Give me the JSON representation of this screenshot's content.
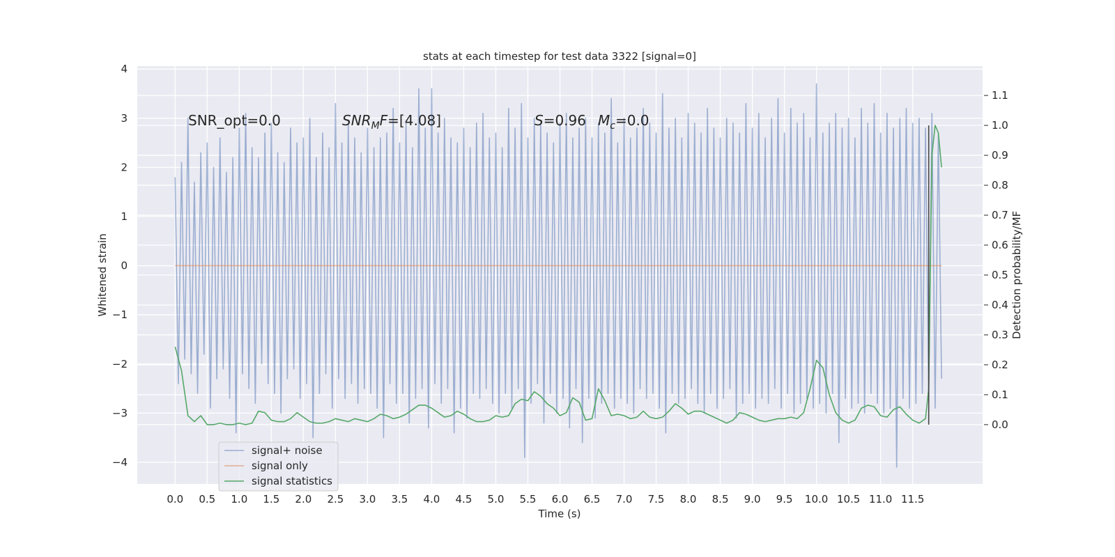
{
  "chart_data": {
    "type": "line",
    "title": "stats at each timestep for test data 3322 [signal=0]",
    "xlabel": "Time (s)",
    "ylabel": "Whitened strain",
    "y2label": "Detection probability/MF",
    "xlim": [
      -0.59,
      12.59
    ],
    "ylim": [
      -4.44,
      4.06
    ],
    "y2lim": [
      -0.198,
      1.198
    ],
    "grid": true,
    "legend": "lower left",
    "xticks": [
      {
        "value": 0,
        "label": "0.0"
      },
      {
        "value": 0.5,
        "label": "0.5"
      },
      {
        "value": 1,
        "label": "1.0"
      },
      {
        "value": 1.5,
        "label": "1.5"
      },
      {
        "value": 2,
        "label": "2.0"
      },
      {
        "value": 2.5,
        "label": "2.5"
      },
      {
        "value": 3,
        "label": "3.0"
      },
      {
        "value": 3.5,
        "label": "3.5"
      },
      {
        "value": 4,
        "label": "4.0"
      },
      {
        "value": 4.5,
        "label": "4.5"
      },
      {
        "value": 5,
        "label": "5.0"
      },
      {
        "value": 5.5,
        "label": "5.5"
      },
      {
        "value": 6,
        "label": "6.0"
      },
      {
        "value": 6.5,
        "label": "6.5"
      },
      {
        "value": 7,
        "label": "7.0"
      },
      {
        "value": 7.5,
        "label": "7.5"
      },
      {
        "value": 8,
        "label": "8.0"
      },
      {
        "value": 8.5,
        "label": "8.5"
      },
      {
        "value": 9,
        "label": "9.0"
      },
      {
        "value": 9.5,
        "label": "9.5"
      },
      {
        "value": 10,
        "label": "10.0"
      },
      {
        "value": 10.5,
        "label": "10.5"
      },
      {
        "value": 11,
        "label": "11.0"
      },
      {
        "value": 11.5,
        "label": "11.5"
      }
    ],
    "yticks": [
      {
        "value": -4,
        "label": "−4"
      },
      {
        "value": -3,
        "label": "−3"
      },
      {
        "value": -2,
        "label": "−2"
      },
      {
        "value": -1,
        "label": "−1"
      },
      0,
      1,
      2,
      3,
      4
    ],
    "y2ticks": [
      {
        "value": 0,
        "label": "0.0"
      },
      {
        "value": 0.1,
        "label": "0.1"
      },
      {
        "value": 0.2,
        "label": "0.2"
      },
      {
        "value": 0.3,
        "label": "0.3"
      },
      {
        "value": 0.4,
        "label": "0.4"
      },
      {
        "value": 0.5,
        "label": "0.5"
      },
      {
        "value": 0.6,
        "label": "0.6"
      },
      {
        "value": 0.7,
        "label": "0.7"
      },
      {
        "value": 0.8,
        "label": "0.8"
      },
      {
        "value": 0.9,
        "label": "0.9"
      },
      {
        "value": 1,
        "label": "1.0"
      },
      {
        "value": 1.1,
        "label": "1.1"
      }
    ],
    "series": [
      {
        "name": "signal+ noise",
        "color": "#4c72b0",
        "opacity": 0.5,
        "x": [
          0,
          0.05,
          0.1,
          0.15,
          0.2,
          0.25,
          0.3,
          0.35,
          0.4,
          0.45,
          0.5,
          0.55,
          0.6,
          0.65,
          0.7,
          0.75,
          0.8,
          0.85,
          0.9,
          0.95,
          1,
          1.05,
          1.1,
          1.15,
          1.2,
          1.25,
          1.3,
          1.35,
          1.4,
          1.45,
          1.5,
          1.55,
          1.6,
          1.65,
          1.7,
          1.75,
          1.8,
          1.85,
          1.9,
          1.95,
          2,
          2.05,
          2.1,
          2.15,
          2.2,
          2.25,
          2.3,
          2.35,
          2.4,
          2.45,
          2.5,
          2.55,
          2.6,
          2.65,
          2.7,
          2.75,
          2.8,
          2.85,
          2.9,
          2.95,
          3,
          3.05,
          3.1,
          3.15,
          3.2,
          3.25,
          3.3,
          3.35,
          3.4,
          3.45,
          3.5,
          3.55,
          3.6,
          3.65,
          3.7,
          3.75,
          3.8,
          3.85,
          3.9,
          3.95,
          4,
          4.05,
          4.1,
          4.15,
          4.2,
          4.25,
          4.3,
          4.35,
          4.4,
          4.45,
          4.5,
          4.55,
          4.6,
          4.65,
          4.7,
          4.75,
          4.8,
          4.85,
          4.9,
          4.95,
          5,
          5.05,
          5.1,
          5.15,
          5.2,
          5.25,
          5.3,
          5.35,
          5.4,
          5.45,
          5.5,
          5.55,
          5.6,
          5.65,
          5.7,
          5.75,
          5.8,
          5.85,
          5.9,
          5.95,
          6,
          6.05,
          6.1,
          6.15,
          6.2,
          6.25,
          6.3,
          6.35,
          6.4,
          6.45,
          6.5,
          6.55,
          6.6,
          6.65,
          6.7,
          6.75,
          6.8,
          6.85,
          6.9,
          6.95,
          7,
          7.05,
          7.1,
          7.15,
          7.2,
          7.25,
          7.3,
          7.35,
          7.4,
          7.45,
          7.5,
          7.55,
          7.6,
          7.65,
          7.7,
          7.75,
          7.8,
          7.85,
          7.9,
          7.95,
          8,
          8.05,
          8.1,
          8.15,
          8.2,
          8.25,
          8.3,
          8.35,
          8.4,
          8.45,
          8.5,
          8.55,
          8.6,
          8.65,
          8.7,
          8.75,
          8.8,
          8.85,
          8.9,
          8.95,
          9,
          9.05,
          9.1,
          9.15,
          9.2,
          9.25,
          9.3,
          9.35,
          9.4,
          9.45,
          9.5,
          9.55,
          9.6,
          9.65,
          9.7,
          9.75,
          9.8,
          9.85,
          9.9,
          9.95,
          10,
          10.05,
          10.1,
          10.15,
          10.2,
          10.25,
          10.3,
          10.35,
          10.4,
          10.45,
          10.5,
          10.55,
          10.6,
          10.65,
          10.7,
          10.75,
          10.8,
          10.85,
          10.9,
          10.95,
          11,
          11.05,
          11.1,
          11.15,
          11.2,
          11.25,
          11.3,
          11.35,
          11.4,
          11.45,
          11.5,
          11.55,
          11.6,
          11.65,
          11.7,
          11.75,
          11.8,
          11.85,
          11.9,
          11.95
        ],
        "values": [
          1.8,
          -2.4,
          2.1,
          -1.9,
          3.0,
          -2.2,
          1.7,
          -2.6,
          2.3,
          -1.8,
          2.5,
          -2.9,
          2.0,
          -2.3,
          2.6,
          -2.1,
          1.9,
          -2.7,
          2.2,
          -3.4,
          2.8,
          -2.2,
          3.1,
          -2.5,
          2.4,
          -2.8,
          2.2,
          -2.0,
          2.7,
          -2.4,
          2.9,
          -2.6,
          2.3,
          -3.0,
          2.1,
          -2.3,
          2.8,
          -2.1,
          2.5,
          -2.7,
          2.6,
          -2.4,
          3.0,
          -3.5,
          2.2,
          -2.6,
          2.7,
          -2.2,
          2.4,
          -2.9,
          3.3,
          -2.3,
          2.5,
          -2.7,
          2.9,
          -2.4,
          2.6,
          -2.8,
          2.3,
          -2.5,
          2.8,
          -2.6,
          2.4,
          -2.9,
          2.6,
          -3.5,
          2.7,
          -2.4,
          3.2,
          -2.8,
          2.5,
          -2.6,
          2.9,
          -3.2,
          2.4,
          -2.7,
          3.6,
          -2.5,
          2.8,
          -3.3,
          3.6,
          -2.4,
          2.7,
          -2.8,
          3.0,
          -2.5,
          2.6,
          -3.4,
          2.5,
          -2.9,
          2.8,
          -3.1,
          2.4,
          -2.6,
          2.9,
          -2.7,
          3.1,
          -2.5,
          2.6,
          -2.8,
          2.7,
          -3.0,
          2.4,
          -2.6,
          3.2,
          -2.9,
          2.8,
          -2.5,
          3.3,
          -3.9,
          2.6,
          -2.8,
          3.0,
          -2.4,
          2.9,
          -3.2,
          2.7,
          -2.6,
          2.5,
          -3.0,
          2.9,
          -2.7,
          3.1,
          -3.3,
          2.6,
          -2.5,
          2.8,
          -3.6,
          3.0,
          -2.7,
          2.6,
          -3.1,
          2.9,
          -2.8,
          2.7,
          -2.6,
          3.4,
          -2.9,
          2.5,
          -2.7,
          3.0,
          -2.8,
          2.6,
          -3.0,
          2.8,
          -2.5,
          3.2,
          -2.7,
          2.9,
          -2.6,
          2.7,
          -2.9,
          3.5,
          -3.4,
          2.8,
          -2.6,
          3.0,
          -2.8,
          2.6,
          -2.7,
          3.1,
          -2.5,
          2.9,
          -2.8,
          2.7,
          -3.0,
          3.2,
          -2.6,
          2.8,
          -2.9,
          2.6,
          -2.7,
          3.0,
          -2.5,
          2.9,
          -3.1,
          2.7,
          -2.8,
          3.3,
          -2.6,
          2.8,
          -2.9,
          3.1,
          -2.7,
          2.6,
          -2.8,
          3.0,
          -2.5,
          3.4,
          -2.9,
          2.7,
          -2.6,
          3.2,
          -3.0,
          2.9,
          -2.8,
          3.1,
          -2.7,
          2.6,
          -2.9,
          3.7,
          -2.8,
          2.7,
          -3.0,
          2.9,
          -2.6,
          3.1,
          -3.6,
          2.8,
          -2.7,
          3.0,
          -2.9,
          2.6,
          -2.8,
          3.2,
          -3.0,
          2.9,
          -2.6,
          3.3,
          -2.8,
          2.7,
          -3.0,
          3.1,
          -2.9,
          2.8,
          -4.1,
          3.0,
          -2.7,
          3.2,
          -2.9,
          2.9,
          -2.8,
          3.0,
          -2.6,
          2.8,
          -2.7,
          3.1,
          -2.9,
          2.7,
          -2.3
        ]
      },
      {
        "name": "signal only",
        "color": "#dd8452",
        "opacity": 0.6,
        "x": [
          0,
          11.95
        ],
        "values": [
          0,
          0
        ]
      },
      {
        "name": "signal statistics",
        "color": "#55a868",
        "opacity": 1,
        "axis": "y2",
        "x": [
          0,
          0.1,
          0.2,
          0.3,
          0.4,
          0.5,
          0.6,
          0.7,
          0.8,
          0.9,
          1,
          1.1,
          1.2,
          1.3,
          1.4,
          1.5,
          1.6,
          1.7,
          1.8,
          1.9,
          2,
          2.1,
          2.2,
          2.3,
          2.4,
          2.5,
          2.6,
          2.7,
          2.8,
          2.9,
          3,
          3.1,
          3.2,
          3.3,
          3.4,
          3.5,
          3.6,
          3.7,
          3.8,
          3.9,
          4,
          4.1,
          4.2,
          4.3,
          4.4,
          4.5,
          4.6,
          4.7,
          4.8,
          4.9,
          5,
          5.1,
          5.2,
          5.3,
          5.4,
          5.5,
          5.6,
          5.7,
          5.8,
          5.9,
          6,
          6.1,
          6.2,
          6.3,
          6.4,
          6.5,
          6.6,
          6.7,
          6.8,
          6.9,
          7,
          7.1,
          7.2,
          7.3,
          7.4,
          7.5,
          7.6,
          7.7,
          7.8,
          7.9,
          8,
          8.1,
          8.2,
          8.3,
          8.4,
          8.5,
          8.6,
          8.7,
          8.8,
          8.9,
          9,
          9.1,
          9.2,
          9.3,
          9.4,
          9.5,
          9.6,
          9.7,
          9.8,
          9.9,
          10,
          10.1,
          10.2,
          10.3,
          10.4,
          10.5,
          10.6,
          10.7,
          10.8,
          10.9,
          11,
          11.1,
          11.2,
          11.3,
          11.4,
          11.5,
          11.6,
          11.7,
          11.75,
          11.8,
          11.85,
          11.9,
          11.95
        ],
        "values": [
          0.26,
          0.18,
          0.03,
          0.01,
          0.03,
          0.0,
          0.0,
          0.005,
          0.0,
          0.0,
          0.005,
          0.0,
          0.005,
          0.045,
          0.04,
          0.015,
          0.01,
          0.01,
          0.02,
          0.04,
          0.025,
          0.01,
          0.005,
          0.005,
          0.01,
          0.02,
          0.015,
          0.01,
          0.02,
          0.015,
          0.01,
          0.02,
          0.035,
          0.03,
          0.02,
          0.025,
          0.035,
          0.05,
          0.065,
          0.065,
          0.055,
          0.04,
          0.025,
          0.03,
          0.045,
          0.035,
          0.02,
          0.01,
          0.01,
          0.015,
          0.03,
          0.025,
          0.03,
          0.07,
          0.085,
          0.08,
          0.11,
          0.095,
          0.07,
          0.055,
          0.03,
          0.04,
          0.09,
          0.075,
          0.015,
          0.02,
          0.12,
          0.08,
          0.03,
          0.035,
          0.03,
          0.02,
          0.025,
          0.045,
          0.025,
          0.02,
          0.025,
          0.045,
          0.07,
          0.055,
          0.035,
          0.045,
          0.045,
          0.035,
          0.025,
          0.015,
          0.005,
          0.015,
          0.04,
          0.035,
          0.025,
          0.015,
          0.01,
          0.015,
          0.02,
          0.02,
          0.025,
          0.02,
          0.04,
          0.12,
          0.215,
          0.19,
          0.1,
          0.04,
          0.015,
          0.005,
          0.015,
          0.055,
          0.065,
          0.06,
          0.03,
          0.025,
          0.05,
          0.06,
          0.035,
          0.015,
          0.005,
          0.02,
          0.12,
          0.9,
          1.0,
          0.975,
          0.86
        ]
      }
    ],
    "vline": {
      "x": 11.75,
      "y2": [
        0,
        1.0
      ],
      "color": "#444444"
    },
    "annotations": [
      {
        "parts": [
          {
            "text": "SNR_opt=0.0"
          }
        ]
      },
      {
        "parts": [
          {
            "text": "SNR",
            "italic": true
          },
          {
            "text": "M",
            "italic": true,
            "sub": true
          },
          {
            "text": "F",
            "italic": true
          },
          {
            "text": "=[4.08]"
          }
        ]
      },
      {
        "parts": [
          {
            "text": "S",
            "italic": true
          },
          {
            "text": "=0.96"
          }
        ]
      },
      {
        "parts": [
          {
            "text": "M",
            "italic": true
          },
          {
            "text": "c",
            "italic": true,
            "sub": true
          },
          {
            "text": "=0.0"
          }
        ]
      }
    ]
  }
}
